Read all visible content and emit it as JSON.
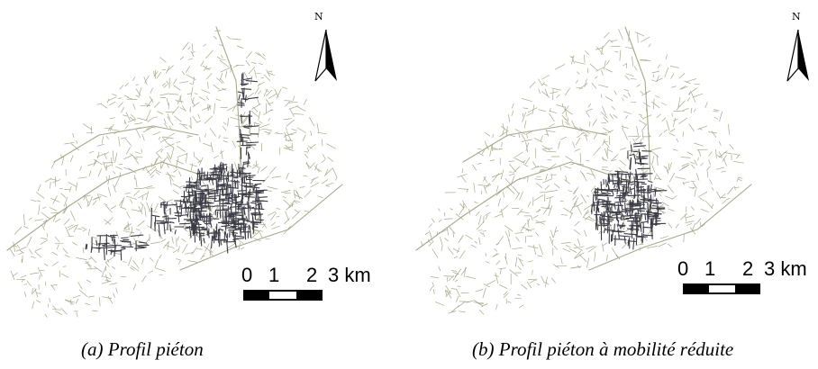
{
  "panels": [
    {
      "id": "a",
      "caption": "(a)  Profil piéton",
      "north_label": "N",
      "scale_labels": [
        "0",
        "1",
        "2",
        "3 km"
      ],
      "network_color": "#a9a88a",
      "highlight_color": "#3c3c46"
    },
    {
      "id": "b",
      "caption": "(b)  Profil piéton à mobilité réduite",
      "north_label": "N",
      "scale_labels": [
        "0",
        "1",
        "2",
        "3 km"
      ],
      "network_color": "#a9a88a",
      "highlight_color": "#3c3c46"
    }
  ]
}
